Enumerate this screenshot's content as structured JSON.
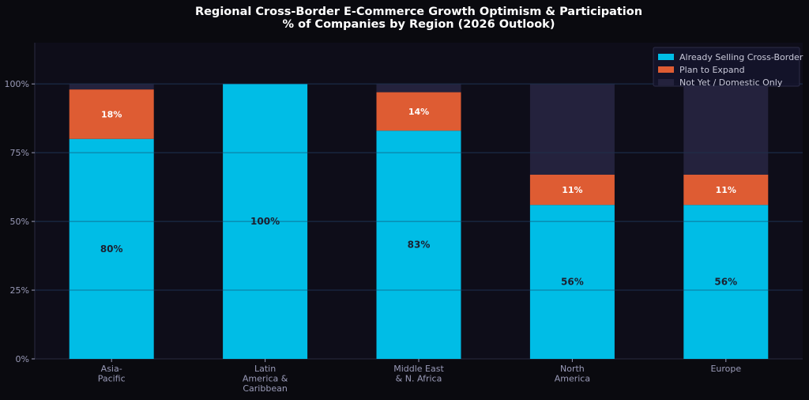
{
  "chart_data": {
    "type": "bar",
    "stacked": true,
    "title": "Regional Cross-Border E-Commerce Growth Optimism & Participation",
    "subtitle": "% of Companies by Region (2026 Outlook)",
    "xlabel": "",
    "ylabel": "",
    "ylim": [
      0,
      115
    ],
    "yticks": [
      0,
      25,
      50,
      75,
      100
    ],
    "ytick_labels": [
      "0%",
      "25%",
      "50%",
      "75%",
      "100%"
    ],
    "grid": true,
    "legend_position": "top-right",
    "categories": [
      [
        "Asia-",
        "Pacific"
      ],
      [
        "Latin",
        "America &",
        "Caribbean"
      ],
      [
        "Middle East",
        "& N. Africa"
      ],
      [
        "North",
        "America"
      ],
      [
        "Europe"
      ]
    ],
    "series": [
      {
        "name": "Already Selling Cross-Border",
        "color": "#00bde6",
        "label_color": "#1b2030",
        "values": [
          80,
          100,
          83,
          56,
          56
        ],
        "labels": [
          "80%",
          "100%",
          "83%",
          "56%",
          "56%"
        ]
      },
      {
        "name": "Plan to Expand",
        "color": "#de5c33",
        "label_color": "#ffffff",
        "values": [
          18,
          0,
          14,
          11,
          11
        ],
        "labels": [
          "18%",
          "",
          "14%",
          "11%",
          "11%"
        ]
      },
      {
        "name": "Not Yet / Domestic Only",
        "color": "#24223d",
        "label_color": "#ffffff",
        "values": [
          2,
          0,
          3,
          33,
          33
        ],
        "labels": [
          "",
          "",
          "",
          "",
          ""
        ]
      }
    ],
    "colors": {
      "background": "#0a0a0f",
      "plot_background": "#0e0d19",
      "grid": "#1f2540",
      "tick_text": "#9a9bb8",
      "title_text": "#ffffff"
    }
  }
}
